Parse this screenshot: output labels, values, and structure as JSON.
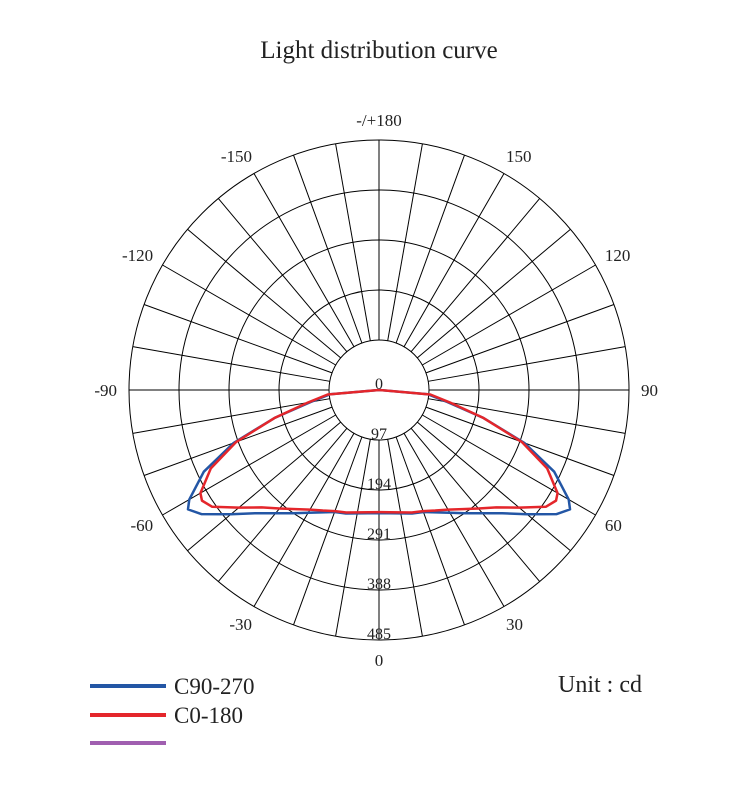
{
  "chart_data": {
    "type": "polar",
    "title": "Light distribution curve",
    "unit_label": "Unit : cd",
    "theta": [
      -90,
      -85,
      -80,
      -75,
      -70,
      -65,
      -60,
      -58,
      -55,
      -50,
      -45,
      -40,
      -35,
      -30,
      -25,
      -20,
      -15,
      -10,
      -5,
      0,
      5,
      10,
      15,
      20,
      25,
      30,
      35,
      40,
      45,
      50,
      55,
      58,
      60,
      65,
      70,
      75,
      80,
      85,
      90
    ],
    "series": [
      {
        "name": "C90-270",
        "color": "#2356a5",
        "values": [
          0,
          95,
          135,
          210,
          300,
          375,
          425,
          437,
          420,
          375,
          338,
          312,
          292,
          275,
          262,
          252,
          248,
          243,
          240,
          239,
          240,
          243,
          248,
          252,
          262,
          275,
          292,
          312,
          338,
          375,
          420,
          437,
          425,
          375,
          300,
          210,
          135,
          95,
          0
        ]
      },
      {
        "name": "C0-180",
        "color": "#e4262b",
        "values": [
          0,
          100,
          140,
          210,
          295,
          360,
          400,
          405,
          395,
          355,
          322,
          300,
          282,
          268,
          258,
          250,
          246,
          241,
          238,
          237,
          238,
          241,
          246,
          250,
          258,
          268,
          282,
          300,
          322,
          355,
          395,
          405,
          400,
          360,
          295,
          210,
          140,
          100,
          0
        ]
      }
    ],
    "rlim": [
      0,
      485
    ],
    "rticks": [
      0,
      97,
      194,
      291,
      388,
      485
    ],
    "thetaticks": [
      0,
      30,
      60,
      90,
      120,
      150,
      {
        "value": 180,
        "label": "-/+180"
      },
      -150,
      -120,
      -90,
      -60,
      -30
    ]
  }
}
